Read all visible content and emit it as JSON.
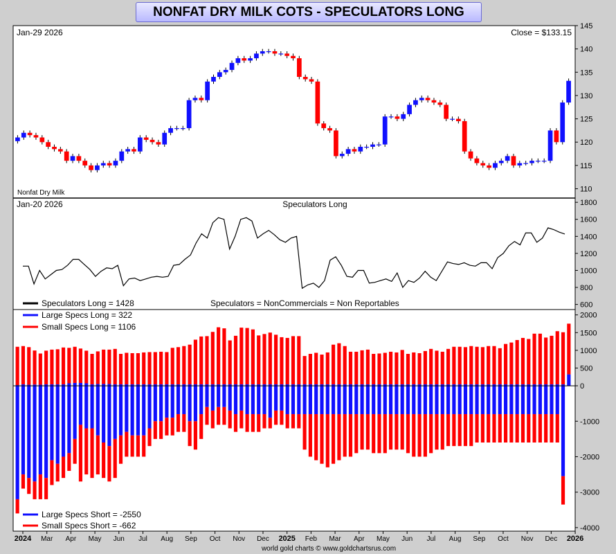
{
  "title": "NONFAT DRY MILK COTS - SPECULATORS LONG",
  "footer": "world gold charts © www.goldchartsrus.com",
  "chart_data": [
    {
      "type": "candlestick",
      "panel": "price",
      "date_label": "Jan-29  2026",
      "close_label": "Close = $133.15",
      "series_label": "Nonfat Dry Milk",
      "ylim": [
        108,
        145
      ],
      "y_ticks": [
        110,
        115,
        120,
        125,
        130,
        135,
        140,
        145
      ],
      "x_months": [
        {
          "label": "2024",
          "bold": true
        },
        {
          "label": "Mar"
        },
        {
          "label": "Apr"
        },
        {
          "label": "May"
        },
        {
          "label": "Jun"
        },
        {
          "label": "Jul"
        },
        {
          "label": "Aug"
        },
        {
          "label": "Sep"
        },
        {
          "label": "Oct"
        },
        {
          "label": "Nov"
        },
        {
          "label": "Dec"
        },
        {
          "label": "2025",
          "bold": true
        },
        {
          "label": "Feb"
        },
        {
          "label": "Mar"
        },
        {
          "label": "Apr"
        },
        {
          "label": "May"
        },
        {
          "label": "Jun"
        },
        {
          "label": "Jul"
        },
        {
          "label": "Aug"
        },
        {
          "label": "Sep"
        },
        {
          "label": "Oct"
        },
        {
          "label": "Nov"
        },
        {
          "label": "Dec"
        },
        {
          "label": "2026",
          "bold": true
        }
      ],
      "closes": [
        121.0,
        122.0,
        121.5,
        121.0,
        120.0,
        119.0,
        118.5,
        118.0,
        116.0,
        117.0,
        116.0,
        115.0,
        114.0,
        115.0,
        115.5,
        115.0,
        116.0,
        118.0,
        118.5,
        118.0,
        121.0,
        120.5,
        120.0,
        119.5,
        122.0,
        123.0,
        123.0,
        123.0,
        129.0,
        129.5,
        129.0,
        133.0,
        134.0,
        135.0,
        135.5,
        137.0,
        138.0,
        137.5,
        138.0,
        139.0,
        139.5,
        139.5,
        139.0,
        139.0,
        138.5,
        138.0,
        134.0,
        133.5,
        133.0,
        124.0,
        123.0,
        122.5,
        117.0,
        117.5,
        118.5,
        118.0,
        119.0,
        119.0,
        119.5,
        119.5,
        125.5,
        125.5,
        125.0,
        126.0,
        128.0,
        129.0,
        129.5,
        129.0,
        128.5,
        128.0,
        125.0,
        125.0,
        124.5,
        118.0,
        116.5,
        115.5,
        115.0,
        114.5,
        115.5,
        116.0,
        117.0,
        115.0,
        115.5,
        115.5,
        116.0,
        116.0,
        116.0,
        122.5,
        120.0,
        128.5,
        133.15
      ],
      "up_color": "#1010ff",
      "down_color": "#ff0000"
    },
    {
      "type": "line",
      "panel": "speculators",
      "date_label": "Jan-20  2026",
      "title": "Speculators Long",
      "ylim": [
        540,
        1850
      ],
      "y_ticks": [
        600,
        800,
        1000,
        1200,
        1400,
        1600,
        1800
      ],
      "legend": "Speculators Long    = 1428",
      "note": "Speculators = NonCommercials = Non Reportables",
      "values": [
        1050,
        1050,
        840,
        1000,
        900,
        950,
        1000,
        1010,
        1060,
        1130,
        1130,
        1070,
        1010,
        930,
        990,
        1030,
        1020,
        1060,
        820,
        900,
        910,
        880,
        900,
        920,
        930,
        920,
        930,
        1060,
        1070,
        1130,
        1180,
        1320,
        1430,
        1380,
        1560,
        1620,
        1600,
        1250,
        1400,
        1600,
        1620,
        1580,
        1380,
        1430,
        1470,
        1420,
        1360,
        1330,
        1380,
        1400,
        790,
        830,
        850,
        800,
        880,
        1120,
        1160,
        1060,
        930,
        920,
        1000,
        1000,
        850,
        860,
        880,
        900,
        870,
        970,
        800,
        880,
        860,
        910,
        990,
        920,
        880,
        990,
        1100,
        1080,
        1070,
        1090,
        1060,
        1050,
        1090,
        1090,
        1020,
        1150,
        1200,
        1290,
        1340,
        1300,
        1440,
        1440,
        1330,
        1380,
        1500,
        1480,
        1450,
        1428
      ],
      "color": "#000000"
    },
    {
      "type": "bar",
      "panel": "stacked",
      "ylim": [
        -4100,
        2150
      ],
      "y_ticks": [
        2000,
        1500,
        1000,
        500,
        0,
        -1000,
        -2000,
        -3000,
        -4000
      ],
      "y_tick_labels": [
        "2000",
        "1500",
        "1000",
        "500",
        "0",
        "-1000",
        "-2000",
        "-3000",
        "-4000"
      ],
      "series": [
        {
          "name": "Large Specs Long",
          "legend": "Large Specs Long  = 322",
          "color": "#1010ff",
          "values": [
            20,
            40,
            30,
            35,
            30,
            40,
            40,
            40,
            40,
            70,
            80,
            80,
            70,
            40,
            50,
            50,
            50,
            40,
            40,
            40,
            40,
            40,
            40,
            40,
            40,
            40,
            40,
            40,
            40,
            40,
            40,
            40,
            40,
            40,
            40,
            40,
            40,
            40,
            40,
            40,
            40,
            40,
            40,
            40,
            40,
            40,
            40,
            40,
            40,
            40,
            40,
            40,
            40,
            40,
            40,
            40,
            40,
            40,
            40,
            40,
            40,
            40,
            40,
            40,
            40,
            40,
            40,
            40,
            40,
            40,
            40,
            40,
            40,
            40,
            40,
            40,
            40,
            40,
            40,
            40,
            40,
            40,
            40,
            40,
            40,
            40,
            40,
            40,
            40,
            40,
            40,
            40,
            40,
            40,
            40,
            40,
            322
          ]
        },
        {
          "name": "Small Specs Long",
          "legend": "Small Specs Long  = 1106",
          "color": "#ff0000",
          "values": [
            1080,
            1080,
            1060,
            960,
            880,
            950,
            980,
            990,
            1040,
            1000,
            1020,
            970,
            920,
            860,
            920,
            970,
            970,
            1000,
            860,
            890,
            880,
            880,
            900,
            910,
            910,
            920,
            910,
            1030,
            1050,
            1080,
            1120,
            1260,
            1350,
            1360,
            1480,
            1610,
            1580,
            1240,
            1370,
            1600,
            1590,
            1550,
            1380,
            1420,
            1460,
            1400,
            1330,
            1310,
            1360,
            1360,
            800,
            860,
            890,
            840,
            900,
            1120,
            1160,
            1080,
            920,
            920,
            960,
            980,
            860,
            870,
            890,
            920,
            900,
            970,
            860,
            900,
            880,
            940,
            1000,
            950,
            920,
            1000,
            1060,
            1060,
            1050,
            1080,
            1060,
            1050,
            1080,
            1080,
            1020,
            1140,
            1180,
            1250,
            1310,
            1280,
            1430,
            1430,
            1320,
            1370,
            1500,
            1470,
            1430,
            1106
          ]
        },
        {
          "name": "Large Specs Short",
          "legend": "Large Specs Short = -2550",
          "color": "#1010ff",
          "values": [
            -3200,
            -2500,
            -2600,
            -2700,
            -2500,
            -2600,
            -2100,
            -2200,
            -2000,
            -1900,
            -1500,
            -1100,
            -1200,
            -1200,
            -1400,
            -1600,
            -1700,
            -1500,
            -1400,
            -1300,
            -1400,
            -1400,
            -1400,
            -1200,
            -1000,
            -1000,
            -900,
            -900,
            -800,
            -800,
            -1000,
            -1000,
            -800,
            -600,
            -700,
            -600,
            -600,
            -700,
            -800,
            -700,
            -800,
            -800,
            -800,
            -800,
            -900,
            -700,
            -700,
            -800,
            -800,
            -800,
            -800,
            -800,
            -800,
            -800,
            -800,
            -800,
            -800,
            -800,
            -800,
            -800,
            -800,
            -800,
            -800,
            -800,
            -800,
            -800,
            -800,
            -800,
            -800,
            -800,
            -800,
            -800,
            -800,
            -800,
            -800,
            -800,
            -800,
            -800,
            -800,
            -800,
            -800,
            -800,
            -800,
            -800,
            -800,
            -800,
            -800,
            -800,
            -800,
            -800,
            -800,
            -800,
            -800,
            -800,
            -800,
            -2550
          ]
        },
        {
          "name": "Small Specs Short",
          "legend": "Small Specs Short = -662",
          "color": "#ff0000",
          "values": [
            -400,
            -400,
            -450,
            -500,
            -700,
            -600,
            -700,
            -500,
            -600,
            -500,
            -700,
            -1600,
            -1300,
            -1400,
            -1100,
            -1000,
            -1000,
            -1100,
            -800,
            -700,
            -600,
            -600,
            -600,
            -500,
            -500,
            -500,
            -500,
            -500,
            -500,
            -500,
            -700,
            -800,
            -700,
            -500,
            -500,
            -500,
            -500,
            -500,
            -500,
            -500,
            -500,
            -500,
            -500,
            -400,
            -300,
            -400,
            -400,
            -400,
            -400,
            -400,
            -1000,
            -1200,
            -1300,
            -1400,
            -1500,
            -1400,
            -1300,
            -1200,
            -1200,
            -1100,
            -1000,
            -1000,
            -1100,
            -1100,
            -1100,
            -1000,
            -1000,
            -1000,
            -1100,
            -1200,
            -1200,
            -1200,
            -1100,
            -1000,
            -1000,
            -900,
            -900,
            -900,
            -900,
            -900,
            -800,
            -800,
            -800,
            -800,
            -800,
            -800,
            -800,
            -800,
            -800,
            -800,
            -800,
            -800,
            -800,
            -800,
            -800,
            -800,
            -662
          ]
        }
      ]
    }
  ]
}
